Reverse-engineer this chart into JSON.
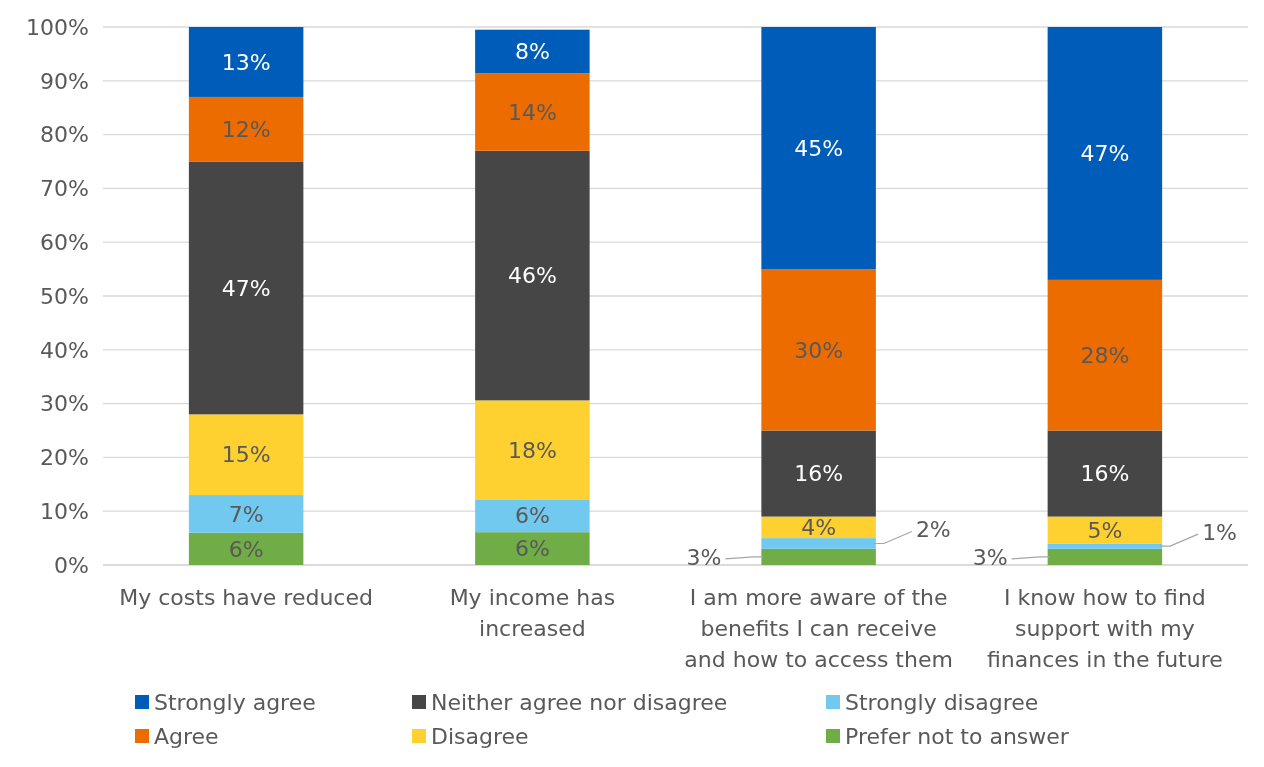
{
  "chart_data": {
    "type": "bar",
    "stacked": true,
    "grid": "y",
    "legend": "bottom",
    "categories": [
      "My costs have reduced",
      "My income has increased",
      "I am more aware of the benefits I can receive and how to access them",
      "I know how to find support with my finances in the future"
    ],
    "ylim": [
      0,
      100
    ],
    "yticks": [
      {
        "value": 0,
        "label": "0%"
      },
      {
        "value": 10,
        "label": "10%"
      },
      {
        "value": 20,
        "label": "20%"
      },
      {
        "value": 30,
        "label": "30%"
      },
      {
        "value": 40,
        "label": "40%"
      },
      {
        "value": 50,
        "label": "50%"
      },
      {
        "value": 60,
        "label": "60%"
      },
      {
        "value": 70,
        "label": "70%"
      },
      {
        "value": 80,
        "label": "80%"
      },
      {
        "value": 90,
        "label": "90%"
      },
      {
        "value": 100,
        "label": "100%"
      }
    ],
    "series": [
      {
        "name": "Prefer not to answer",
        "color": "#70ad47",
        "values": [
          6,
          6.1,
          3,
          3
        ],
        "value_labels": [
          "6%",
          "6%",
          "3%",
          "3%"
        ]
      },
      {
        "name": "Strongly disagree",
        "color": "#71c9ef",
        "values": [
          7,
          6.1,
          2,
          1
        ],
        "value_labels": [
          "7%",
          "6%",
          "2%",
          "1%"
        ]
      },
      {
        "name": "Disagree",
        "color": "#fed130",
        "values": [
          15,
          18.4,
          4,
          5
        ],
        "value_labels": [
          "15%",
          "18%",
          "4%",
          "5%"
        ]
      },
      {
        "name": "Neither agree nor disagree",
        "color": "#464646",
        "values": [
          47,
          46.4,
          16,
          16
        ],
        "value_labels": [
          "47%",
          "46%",
          "16%",
          "16%"
        ]
      },
      {
        "name": "Agree",
        "color": "#ec6c00",
        "values": [
          12,
          14.4,
          30,
          28
        ],
        "value_labels": [
          "12%",
          "14%",
          "30%",
          "28%"
        ]
      },
      {
        "name": "Strongly agree",
        "color": "#005cb9",
        "values": [
          13,
          8.1,
          45,
          47
        ],
        "value_labels": [
          "13%",
          "8%",
          "45%",
          "47%"
        ]
      }
    ]
  }
}
